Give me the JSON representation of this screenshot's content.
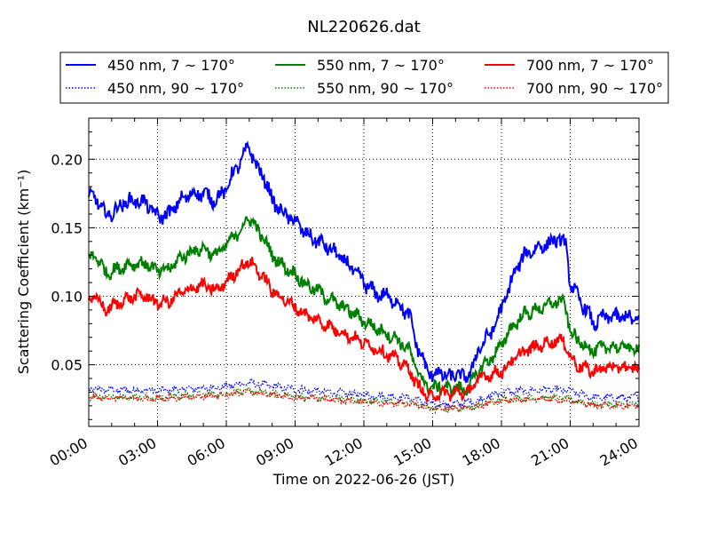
{
  "chart_data": {
    "type": "line",
    "title": "NL220626.dat",
    "xlabel": "Time on 2022-06-26 (JST)",
    "ylabel": "Scattering Coefficient (km⁻¹)",
    "x_ticks": [
      "00:00",
      "03:00",
      "06:00",
      "09:00",
      "12:00",
      "15:00",
      "18:00",
      "21:00",
      "24:00"
    ],
    "x_tick_hours": [
      0,
      3,
      6,
      9,
      12,
      15,
      18,
      21,
      24
    ],
    "xlim_hours": [
      0,
      24
    ],
    "ylim": [
      0.005,
      0.23
    ],
    "y_ticks": [
      0.05,
      0.1,
      0.15,
      0.2
    ],
    "y_tick_labels": [
      "0.05",
      "0.10",
      "0.15",
      "0.20"
    ],
    "grid": true,
    "grid_style": "dotted",
    "legend_position": "above-plot",
    "series": [
      {
        "name": "450 nm, 7 ~ 170°",
        "color": "#0000ff",
        "style": "solid",
        "noise": 0.0045,
        "x": [
          0,
          0.3,
          0.7,
          1,
          1.5,
          2,
          2.5,
          3,
          3.5,
          4,
          4.5,
          5,
          5.5,
          6,
          6.3,
          6.7,
          7,
          7.3,
          7.7,
          8,
          8.5,
          9,
          9.5,
          10,
          10.5,
          11,
          11.5,
          12,
          12.5,
          13,
          13.5,
          14,
          14.3,
          14.7,
          15,
          15.3,
          15.7,
          16,
          16.3,
          16.7,
          17,
          17.5,
          18,
          18.3,
          18.7,
          19,
          19.5,
          20,
          20.5,
          20.8,
          21,
          21.3,
          21.7,
          22,
          22.5,
          23,
          23.5,
          24
        ],
        "y": [
          0.172,
          0.172,
          0.16,
          0.16,
          0.168,
          0.17,
          0.168,
          0.158,
          0.16,
          0.17,
          0.175,
          0.175,
          0.17,
          0.178,
          0.19,
          0.2,
          0.21,
          0.195,
          0.185,
          0.17,
          0.16,
          0.155,
          0.145,
          0.14,
          0.135,
          0.128,
          0.12,
          0.11,
          0.102,
          0.1,
          0.095,
          0.085,
          0.065,
          0.048,
          0.042,
          0.045,
          0.04,
          0.044,
          0.04,
          0.045,
          0.062,
          0.072,
          0.09,
          0.105,
          0.122,
          0.13,
          0.135,
          0.138,
          0.142,
          0.138,
          0.11,
          0.1,
          0.09,
          0.08,
          0.085,
          0.085,
          0.085,
          0.082
        ]
      },
      {
        "name": "550 nm, 7 ~ 170°",
        "color": "#008000",
        "style": "solid",
        "noise": 0.004,
        "x": [
          0,
          0.3,
          0.7,
          1,
          1.5,
          2,
          2.5,
          3,
          3.5,
          4,
          4.5,
          5,
          5.5,
          6,
          6.3,
          6.7,
          7,
          7.3,
          7.7,
          8,
          8.5,
          9,
          9.5,
          10,
          10.5,
          11,
          11.5,
          12,
          12.5,
          13,
          13.5,
          14,
          14.3,
          14.7,
          15,
          15.3,
          15.7,
          16,
          16.3,
          16.7,
          17,
          17.5,
          18,
          18.3,
          18.7,
          19,
          19.5,
          20,
          20.5,
          20.8,
          21,
          21.3,
          21.7,
          22,
          22.5,
          23,
          23.5,
          24
        ],
        "y": [
          0.128,
          0.13,
          0.118,
          0.118,
          0.122,
          0.124,
          0.124,
          0.118,
          0.12,
          0.128,
          0.133,
          0.135,
          0.13,
          0.137,
          0.143,
          0.15,
          0.158,
          0.15,
          0.14,
          0.13,
          0.122,
          0.116,
          0.108,
          0.104,
          0.098,
          0.093,
          0.088,
          0.082,
          0.077,
          0.073,
          0.068,
          0.06,
          0.046,
          0.036,
          0.032,
          0.035,
          0.032,
          0.034,
          0.031,
          0.036,
          0.046,
          0.054,
          0.064,
          0.074,
          0.082,
          0.087,
          0.09,
          0.093,
          0.097,
          0.093,
          0.074,
          0.068,
          0.064,
          0.06,
          0.063,
          0.063,
          0.063,
          0.061
        ]
      },
      {
        "name": "700 nm, 7 ~ 170°",
        "color": "#ff0000",
        "style": "solid",
        "noise": 0.0038,
        "x": [
          0,
          0.3,
          0.7,
          1,
          1.5,
          2,
          2.5,
          3,
          3.5,
          4,
          4.5,
          5,
          5.5,
          6,
          6.3,
          6.7,
          7,
          7.3,
          7.7,
          8,
          8.5,
          9,
          9.5,
          10,
          10.5,
          11,
          11.5,
          12,
          12.5,
          13,
          13.5,
          14,
          14.3,
          14.7,
          15,
          15.3,
          15.7,
          16,
          16.3,
          16.7,
          17,
          17.5,
          18,
          18.3,
          18.7,
          19,
          19.5,
          20,
          20.5,
          20.8,
          21,
          21.3,
          21.7,
          22,
          22.5,
          23,
          23.5,
          24
        ],
        "y": [
          0.097,
          0.1,
          0.09,
          0.092,
          0.097,
          0.1,
          0.1,
          0.095,
          0.096,
          0.102,
          0.106,
          0.108,
          0.104,
          0.11,
          0.116,
          0.122,
          0.126,
          0.12,
          0.112,
          0.104,
          0.098,
          0.092,
          0.086,
          0.082,
          0.078,
          0.074,
          0.07,
          0.066,
          0.062,
          0.058,
          0.053,
          0.046,
          0.036,
          0.028,
          0.026,
          0.03,
          0.028,
          0.03,
          0.029,
          0.032,
          0.04,
          0.043,
          0.045,
          0.05,
          0.056,
          0.06,
          0.063,
          0.066,
          0.068,
          0.066,
          0.055,
          0.05,
          0.047,
          0.045,
          0.048,
          0.048,
          0.048,
          0.046
        ]
      },
      {
        "name": "450 nm, 90 ~ 170°",
        "color": "#0000ff",
        "style": "dotted",
        "noise": 0.0022,
        "x": [
          0,
          3,
          6,
          7,
          9,
          12,
          14,
          15,
          16,
          17,
          18,
          20,
          21,
          22,
          24
        ],
        "y": [
          0.032,
          0.031,
          0.034,
          0.037,
          0.032,
          0.028,
          0.026,
          0.021,
          0.021,
          0.024,
          0.03,
          0.032,
          0.031,
          0.026,
          0.026
        ]
      },
      {
        "name": "550 nm, 90 ~ 170°",
        "color": "#008000",
        "style": "dotted",
        "noise": 0.002,
        "x": [
          0,
          3,
          6,
          7,
          9,
          12,
          14,
          15,
          16,
          17,
          18,
          20,
          21,
          22,
          24
        ],
        "y": [
          0.027,
          0.026,
          0.029,
          0.031,
          0.027,
          0.024,
          0.022,
          0.018,
          0.018,
          0.02,
          0.025,
          0.026,
          0.025,
          0.021,
          0.021
        ]
      },
      {
        "name": "700 nm, 90 ~ 170°",
        "color": "#ff0000",
        "style": "dotted",
        "noise": 0.0018,
        "x": [
          0,
          3,
          6,
          7,
          9,
          12,
          14,
          15,
          16,
          17,
          18,
          20,
          21,
          22,
          24
        ],
        "y": [
          0.026,
          0.025,
          0.028,
          0.03,
          0.026,
          0.023,
          0.021,
          0.018,
          0.018,
          0.02,
          0.024,
          0.025,
          0.024,
          0.02,
          0.02
        ]
      }
    ]
  }
}
